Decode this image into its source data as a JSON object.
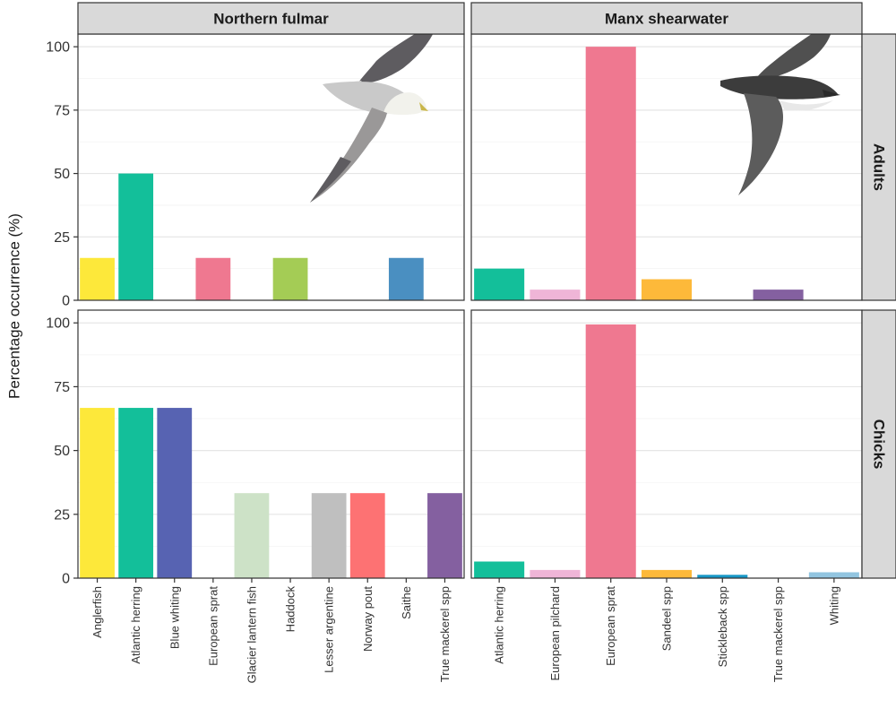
{
  "chart_data": {
    "type": "bar",
    "ylabel": "Percentage occurrence (%)",
    "ylim": [
      0,
      105
    ],
    "yticks": [
      0,
      25,
      50,
      75,
      100
    ],
    "grid": true,
    "columns": [
      {
        "name": "Northern fulmar",
        "icon": "northern-fulmar-icon",
        "categories": [
          "Anglerfish",
          "Atlantic herring",
          "Blue whiting",
          "European sprat",
          "Glacier lantern fish",
          "Haddock",
          "Lesser argentine",
          "Norway pout",
          "Saithe",
          "True mackerel spp"
        ],
        "colors": [
          "#FDE83A",
          "#13BF9A",
          "#5763B2",
          "#EF7890",
          "#CDE2C7",
          "#A4CC55",
          "#BFBFBF",
          "#FD7273",
          "#4A8FC1",
          "#8460A0"
        ]
      },
      {
        "name": "Manx shearwater",
        "icon": "manx-shearwater-icon",
        "categories": [
          "Atlantic herring",
          "European pilchard",
          "European sprat",
          "Sandeel spp",
          "Stickleback spp",
          "True mackerel spp",
          "Whiting"
        ],
        "colors": [
          "#13BF9A",
          "#EFB5D7",
          "#EF7890",
          "#FDB93A",
          "#1797C6",
          "#8460A0",
          "#92C5E0"
        ]
      }
    ],
    "rows": [
      {
        "name": "Adults",
        "values": [
          [
            16.7,
            50,
            0,
            16.7,
            0,
            16.7,
            0,
            0,
            16.7,
            0
          ],
          [
            12.5,
            4.2,
            100,
            8.3,
            0,
            4.2,
            0
          ]
        ]
      },
      {
        "name": "Chicks",
        "values": [
          [
            66.7,
            66.7,
            66.7,
            0,
            33.3,
            0,
            33.3,
            33.3,
            0,
            33.3
          ],
          [
            6.5,
            3.2,
            99.4,
            3.2,
            1.3,
            0,
            2.3
          ]
        ]
      }
    ]
  }
}
